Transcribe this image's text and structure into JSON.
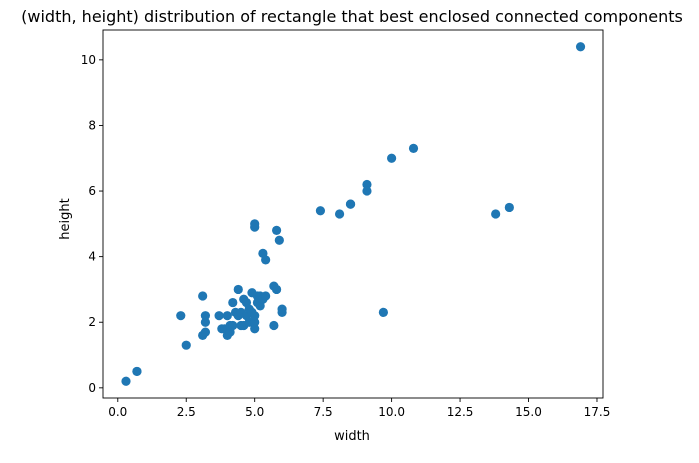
{
  "chart_data": {
    "type": "scatter",
    "title": "(width, height) distribution of rectangle that best enclosed connected components",
    "xlabel": "width",
    "ylabel": "height",
    "xlim": [
      -0.54,
      17.72
    ],
    "ylim": [
      -0.31,
      10.91
    ],
    "xticks": [
      0.0,
      2.5,
      5.0,
      7.5,
      10.0,
      12.5,
      15.0,
      17.5
    ],
    "xtick_labels": [
      "0.0",
      "2.5",
      "5.0",
      "7.5",
      "10.0",
      "12.5",
      "15.0",
      "17.5"
    ],
    "yticks": [
      0,
      2,
      4,
      6,
      8,
      10
    ],
    "ytick_labels": [
      "0",
      "2",
      "4",
      "6",
      "8",
      "10"
    ],
    "grid": false,
    "marker_color": "#1f77b4",
    "series": [
      {
        "x": [
          0.3,
          0.7,
          0.7,
          2.3,
          2.5,
          3.1,
          3.1,
          3.2,
          3.2,
          3.2,
          3.7,
          3.8,
          3.9,
          4.0,
          4.0,
          4.1,
          4.1,
          4.2,
          4.2,
          4.3,
          4.4,
          4.4,
          4.5,
          4.5,
          4.6,
          4.6,
          4.7,
          4.7,
          4.8,
          4.8,
          4.9,
          4.9,
          5.0,
          5.0,
          5.0,
          5.0,
          5.0,
          5.1,
          5.1,
          5.2,
          5.2,
          5.3,
          5.3,
          5.4,
          5.4,
          5.7,
          5.7,
          5.8,
          5.8,
          5.9,
          6.0,
          6.0,
          7.4,
          8.1,
          8.5,
          8.5,
          9.1,
          9.1,
          9.7,
          10.0,
          10.8,
          13.8,
          14.3,
          16.9
        ],
        "y": [
          0.2,
          0.5,
          0.5,
          2.2,
          1.3,
          1.6,
          2.8,
          1.7,
          2.0,
          2.2,
          2.2,
          1.8,
          1.8,
          1.6,
          2.2,
          1.7,
          1.9,
          1.9,
          2.6,
          2.3,
          2.2,
          3.0,
          1.9,
          2.3,
          2.7,
          1.9,
          2.6,
          2.2,
          2.0,
          2.4,
          2.3,
          2.9,
          1.8,
          2.0,
          2.2,
          4.9,
          5.0,
          2.8,
          2.6,
          2.5,
          2.8,
          4.1,
          2.7,
          2.8,
          3.9,
          3.1,
          1.9,
          3.0,
          4.8,
          4.5,
          2.4,
          2.3,
          5.4,
          5.3,
          5.6,
          5.6,
          6.2,
          6.0,
          2.3,
          7.0,
          7.3,
          5.3,
          5.5,
          10.4
        ]
      }
    ]
  }
}
